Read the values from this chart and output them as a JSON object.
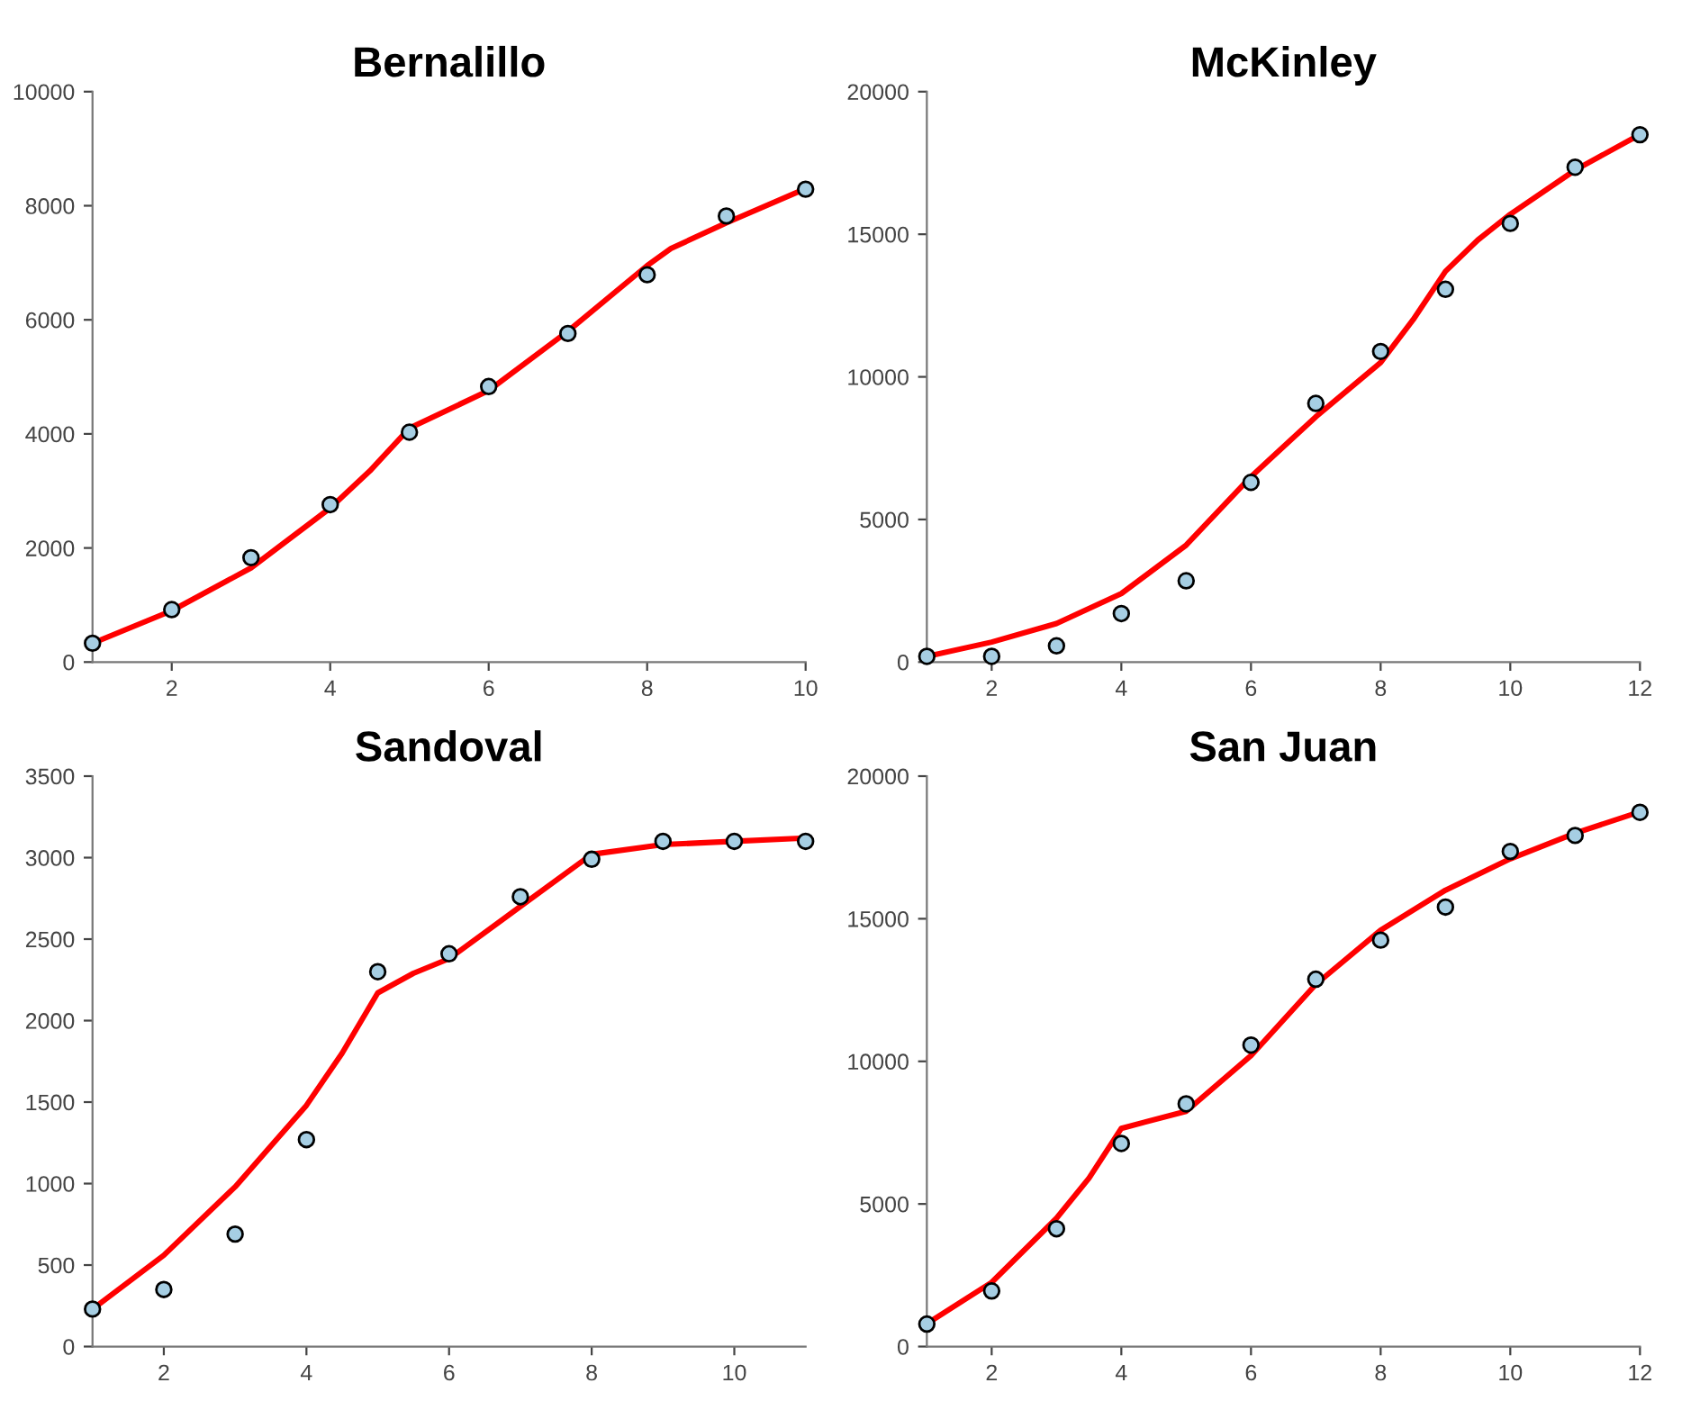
{
  "chart_data": [
    {
      "type": "scatter",
      "title": "Bernalillo",
      "xlim": [
        1,
        10
      ],
      "ylim": [
        0,
        10000
      ],
      "xticks": [
        2,
        4,
        6,
        8,
        10
      ],
      "yticks": [
        0,
        2000,
        4000,
        6000,
        8000,
        10000
      ],
      "series": [
        {
          "type": "line",
          "marker": "none",
          "color": "#ff0000",
          "x": [
            1,
            2,
            3,
            4,
            4.5,
            5,
            6,
            7,
            8,
            8.3,
            9,
            10
          ],
          "values": [
            330,
            900,
            1650,
            2700,
            3350,
            4100,
            4760,
            5800,
            6950,
            7250,
            7700,
            8300
          ]
        },
        {
          "marker": "circle",
          "color": "#a6cee3",
          "x": [
            1,
            2,
            3,
            4,
            5,
            6,
            7,
            8,
            9,
            10
          ],
          "values": [
            330,
            920,
            1830,
            2760,
            4030,
            4830,
            5760,
            6790,
            7820,
            8290
          ]
        }
      ]
    },
    {
      "type": "scatter",
      "title": "McKinley",
      "xlim": [
        1,
        12
      ],
      "ylim": [
        0,
        20000
      ],
      "xticks": [
        2,
        4,
        6,
        8,
        10,
        12
      ],
      "yticks": [
        0,
        5000,
        10000,
        15000,
        20000
      ],
      "series": [
        {
          "type": "line",
          "marker": "none",
          "color": "#ff0000",
          "x": [
            1,
            2,
            3,
            4,
            5,
            6,
            7,
            8,
            8.5,
            9,
            9.5,
            10,
            11,
            12
          ],
          "values": [
            200,
            700,
            1350,
            2400,
            4100,
            6500,
            8600,
            10500,
            12000,
            13700,
            14800,
            15700,
            17250,
            18500
          ]
        },
        {
          "marker": "circle",
          "color": "#a6cee3",
          "x": [
            1,
            2,
            3,
            4,
            5,
            6,
            7,
            8,
            9,
            10,
            11,
            12
          ],
          "values": [
            200,
            200,
            570,
            1700,
            2850,
            6300,
            9070,
            10890,
            13070,
            15380,
            17350,
            18490
          ]
        }
      ]
    },
    {
      "type": "scatter",
      "title": "Sandoval",
      "xlim": [
        1,
        11
      ],
      "ylim": [
        0,
        3500
      ],
      "xticks": [
        2,
        4,
        6,
        8,
        10
      ],
      "yticks": [
        0,
        500,
        1000,
        1500,
        2000,
        2500,
        3000,
        3500
      ],
      "series": [
        {
          "type": "line",
          "marker": "none",
          "color": "#ff0000",
          "x": [
            1,
            2,
            3,
            4,
            4.5,
            5,
            5.5,
            6,
            7,
            8,
            9,
            10,
            11
          ],
          "values": [
            230,
            560,
            980,
            1480,
            1800,
            2170,
            2290,
            2380,
            2700,
            3020,
            3080,
            3100,
            3120
          ]
        },
        {
          "marker": "circle",
          "color": "#a6cee3",
          "x": [
            1,
            2,
            3,
            4,
            5,
            6,
            7,
            8,
            9,
            10,
            11
          ],
          "values": [
            230,
            350,
            690,
            1270,
            2300,
            2410,
            2760,
            2990,
            3100,
            3100,
            3100
          ]
        }
      ]
    },
    {
      "type": "scatter",
      "title": "San Juan",
      "xlim": [
        1,
        12
      ],
      "ylim": [
        0,
        20000
      ],
      "xticks": [
        2,
        4,
        6,
        8,
        10,
        12
      ],
      "yticks": [
        0,
        5000,
        10000,
        15000,
        20000
      ],
      "series": [
        {
          "type": "line",
          "marker": "none",
          "color": "#ff0000",
          "x": [
            1,
            2,
            3,
            3.5,
            4,
            5,
            6,
            7,
            8,
            9,
            10,
            11,
            12
          ],
          "values": [
            800,
            2250,
            4500,
            5900,
            7650,
            8250,
            10200,
            12700,
            14600,
            16000,
            17100,
            18000,
            18750
          ]
        },
        {
          "marker": "circle",
          "color": "#a6cee3",
          "x": [
            1,
            2,
            3,
            4,
            5,
            6,
            7,
            8,
            9,
            10,
            11,
            12
          ],
          "values": [
            790,
            1950,
            4130,
            7120,
            8510,
            10570,
            12880,
            14250,
            15410,
            17360,
            17920,
            18730
          ]
        }
      ]
    }
  ]
}
